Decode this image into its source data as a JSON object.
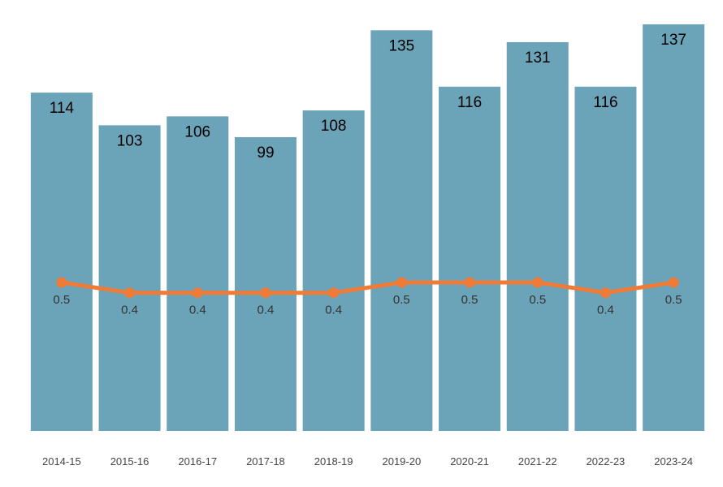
{
  "chart_data": {
    "type": "bar",
    "categories": [
      "2014-15",
      "2015-16",
      "2016-17",
      "2017-18",
      "2018-19",
      "2019-20",
      "2020-21",
      "2021-22",
      "2022-23",
      "2023-24"
    ],
    "series": [
      {
        "type": "bar",
        "values": [
          114,
          103,
          106,
          99,
          108,
          135,
          116,
          131,
          116,
          137
        ],
        "value_labels": [
          "114",
          "103",
          "106",
          "99",
          "108",
          "135",
          "116",
          "131",
          "116",
          "137"
        ],
        "color": "#6ba3b8"
      },
      {
        "type": "line",
        "values": [
          0.5,
          0.4,
          0.4,
          0.4,
          0.4,
          0.5,
          0.5,
          0.5,
          0.4,
          0.5
        ],
        "value_labels": [
          "0.5",
          "0.4",
          "0.4",
          "0.4",
          "0.4",
          "0.5",
          "0.5",
          "0.5",
          "0.4",
          "0.5"
        ],
        "color": "#f07b36",
        "marker": "circle",
        "axis": "secondary"
      }
    ],
    "title": "",
    "xlabel": "",
    "ylabel": "",
    "ylim": [
      0,
      137
    ],
    "y2lim": [
      -0.94,
      0.5
    ],
    "grid": false,
    "legend": "none"
  }
}
